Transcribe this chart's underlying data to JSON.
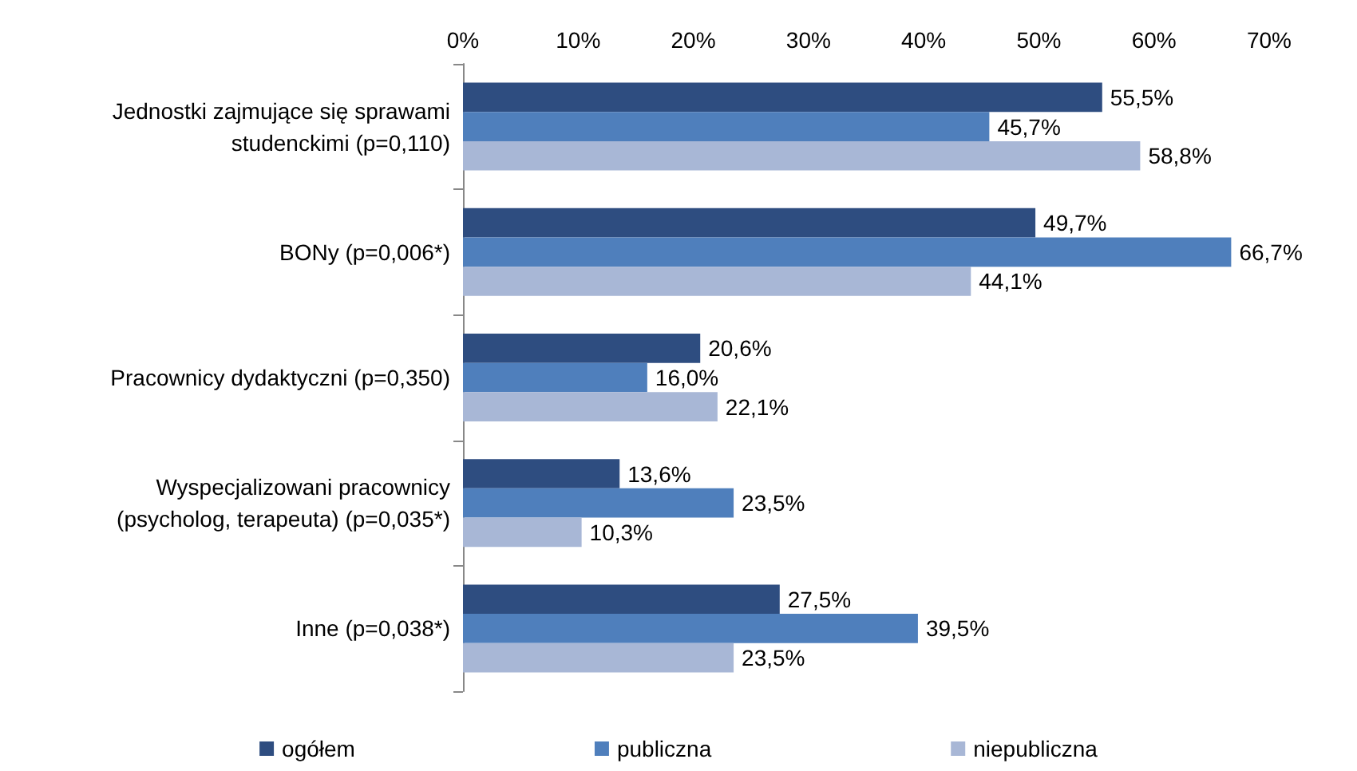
{
  "chart_data": {
    "type": "bar",
    "orientation": "horizontal",
    "categories": [
      "Jednostki zajmujące się sprawami\nstudenckimi (p=0,110)",
      "BONy (p=0,006*)",
      "Pracownicy dydaktyczni (p=0,350)",
      "Wyspecjalizowani pracownicy\n(psycholog, terapeuta) (p=0,035*)",
      "Inne (p=0,038*)"
    ],
    "series": [
      {
        "name": "ogółem",
        "color": "#2e4d80",
        "values": [
          55.5,
          49.7,
          20.6,
          13.6,
          27.5
        ],
        "value_labels": [
          "55,5%",
          "49,7%",
          "20,6%",
          "13,6%",
          "27,5%"
        ]
      },
      {
        "name": "publiczna",
        "color": "#4f7fbc",
        "values": [
          45.7,
          66.7,
          16.0,
          23.5,
          39.5
        ],
        "value_labels": [
          "45,7%",
          "66,7%",
          "16,0%",
          "23,5%",
          "39,5%"
        ]
      },
      {
        "name": "niepubliczna",
        "color": "#a8b7d6",
        "values": [
          58.8,
          44.1,
          22.1,
          10.3,
          23.5
        ],
        "value_labels": [
          "58,8%",
          "44,1%",
          "22,1%",
          "10,3%",
          "23,5%"
        ]
      }
    ],
    "xlim": [
      0,
      70
    ],
    "xticks": [
      {
        "value": 0,
        "label": "0%"
      },
      {
        "value": 10,
        "label": "10%"
      },
      {
        "value": 20,
        "label": "20%"
      },
      {
        "value": 30,
        "label": "30%"
      },
      {
        "value": 40,
        "label": "40%"
      },
      {
        "value": 50,
        "label": "50%"
      },
      {
        "value": 60,
        "label": "60%"
      },
      {
        "value": 70,
        "label": "70%"
      }
    ],
    "grid": false,
    "legend": "bottom"
  }
}
